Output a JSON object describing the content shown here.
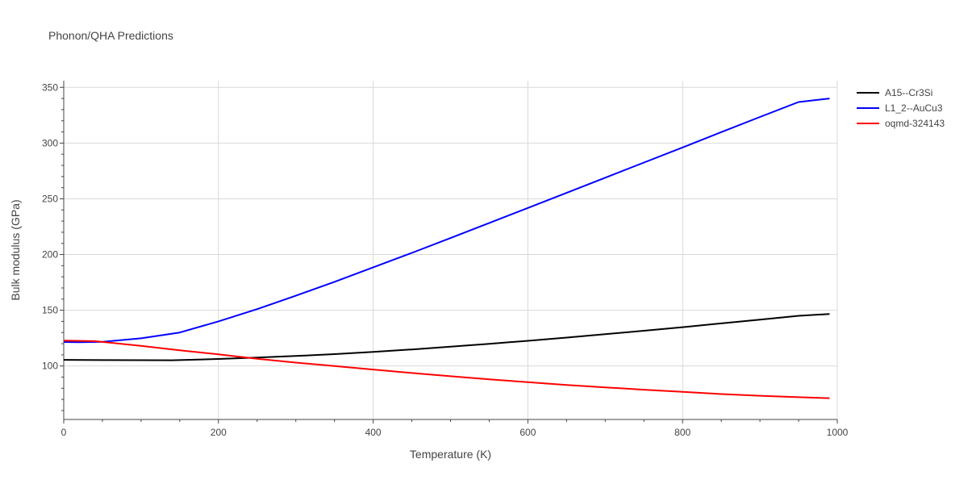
{
  "chart_data": {
    "type": "line",
    "title": "Phonon/QHA Predictions",
    "xlabel": "Temperature (K)",
    "ylabel": "Bulk modulus (GPa)",
    "xlim": [
      0,
      1000
    ],
    "ylim": [
      52,
      356
    ],
    "xticks": [
      0,
      200,
      400,
      600,
      800,
      1000
    ],
    "yticks": [
      100,
      150,
      200,
      250,
      300,
      350
    ],
    "grid": true,
    "legend_position": "top-right",
    "series": [
      {
        "name": "A15--Cr3Si",
        "color": "#000000",
        "x": [
          0,
          50,
          100,
          140,
          200,
          250,
          300,
          350,
          400,
          450,
          500,
          550,
          600,
          650,
          700,
          750,
          800,
          850,
          900,
          950,
          990
        ],
        "y": [
          105.5,
          105.3,
          105.2,
          105.1,
          106.3,
          107.5,
          109.0,
          110.6,
          112.6,
          114.8,
          117.3,
          119.9,
          122.6,
          125.5,
          128.5,
          131.6,
          134.8,
          138.2,
          141.6,
          145.0,
          146.7
        ]
      },
      {
        "name": "L1_2--AuCu3",
        "color": "#0000ff",
        "x": [
          0,
          20,
          50,
          100,
          150,
          200,
          250,
          300,
          350,
          400,
          450,
          500,
          550,
          600,
          650,
          700,
          750,
          800,
          850,
          900,
          950,
          990
        ],
        "y": [
          121.5,
          121.3,
          121.7,
          124.8,
          130.0,
          140.0,
          151.0,
          163.0,
          175.5,
          188.5,
          201.5,
          214.8,
          228.3,
          241.8,
          255.3,
          268.9,
          282.5,
          296.1,
          309.8,
          323.4,
          336.8,
          340.0
        ]
      },
      {
        "name": "oqmd-324143",
        "color": "#ff0000",
        "x": [
          0,
          40,
          100,
          150,
          200,
          250,
          300,
          350,
          400,
          450,
          500,
          550,
          600,
          650,
          700,
          750,
          800,
          850,
          900,
          950,
          990
        ],
        "y": [
          122.8,
          122.3,
          118.0,
          114.0,
          110.5,
          106.5,
          103.0,
          100.0,
          96.8,
          93.7,
          90.8,
          88.0,
          85.5,
          83.0,
          80.8,
          78.7,
          76.8,
          74.8,
          73.3,
          72.0,
          71.1
        ]
      }
    ]
  }
}
